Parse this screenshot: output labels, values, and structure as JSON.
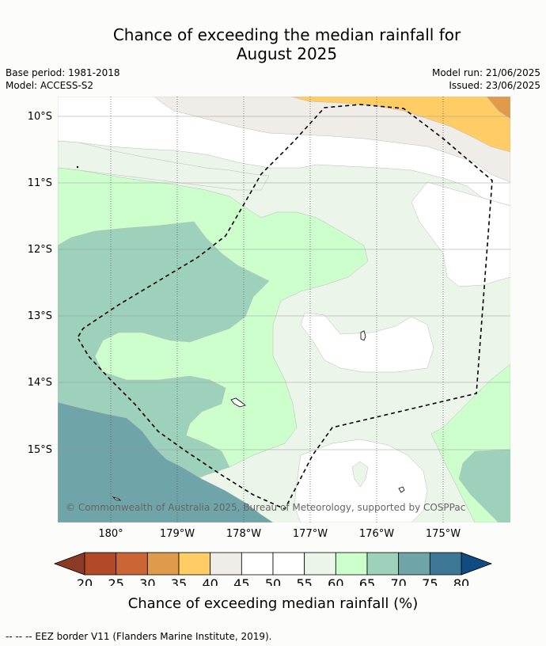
{
  "title_line1": "Chance of exceeding the median rainfall for",
  "title_line2": "August 2025",
  "meta": {
    "base_period": "Base period: 1981-2018",
    "model": "Model: ACCESS-S2",
    "model_run": "Model run: 21/06/2025",
    "issued": "Issued: 23/06/2025"
  },
  "map": {
    "lat_labels": [
      "10°S",
      "11°S",
      "12°S",
      "13°S",
      "14°S",
      "15°S"
    ],
    "lon_labels": [
      "180°",
      "179°W",
      "178°W",
      "177°W",
      "176°W",
      "175°W"
    ],
    "copyright": "© Commonwealth of Australia 2025, Bureau of Meteorology, supported by COSPPac"
  },
  "colorbar": {
    "ticks": [
      "20",
      "25",
      "30",
      "35",
      "40",
      "45",
      "50",
      "55",
      "60",
      "65",
      "70",
      "75",
      "80"
    ],
    "colors": [
      "#b24a28",
      "#cc6535",
      "#e09a4c",
      "#ffcc66",
      "#f0ede8",
      "#ffffff",
      "#ffffff",
      "#ebf5ea",
      "#ccffcc",
      "#9dd1bb",
      "#6fa5a8",
      "#3e7795"
    ],
    "under_color": "#8b3a26",
    "over_color": "#0f4c81",
    "label": "Chance of exceeding median rainfall (%)"
  },
  "footer": "--  --  -- EEZ border V11 (Flanders Marine Institute, 2019)."
}
